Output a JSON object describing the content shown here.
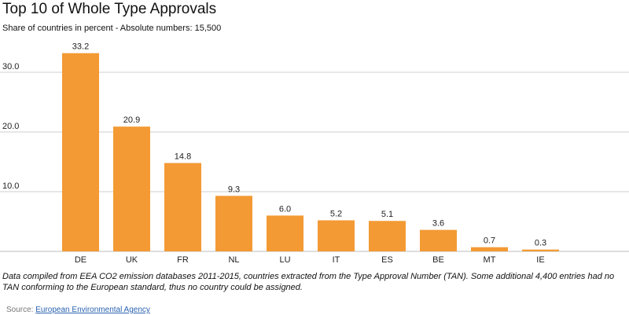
{
  "chart_data": {
    "type": "bar",
    "title": "Top 10 of Whole Type Approvals",
    "subtitle": "Share of countries in percent - Absolute numbers: 15,500",
    "categories": [
      "DE",
      "UK",
      "FR",
      "NL",
      "LU",
      "IT",
      "ES",
      "BE",
      "MT",
      "IE"
    ],
    "values": [
      33.2,
      20.9,
      14.8,
      9.3,
      6.0,
      5.2,
      5.1,
      3.6,
      0.7,
      0.3
    ],
    "value_labels": [
      "33.2",
      "20.9",
      "14.8",
      "9.3",
      "6.0",
      "5.2",
      "5.1",
      "3.6",
      "0.7",
      "0.3"
    ],
    "yticks": [
      10,
      20,
      30
    ],
    "ytick_labels": [
      "10.0",
      "20.0",
      "30.0"
    ],
    "ylim": [
      0,
      35
    ],
    "grid": "horizontal",
    "bar_color": "#f39a34"
  },
  "note": "Data compiled from EEA CO2 emission databases 2011-2015, countries extracted from the Type Approval Number (TAN). Some additional 4,400 entries had no TAN conforming to the European standard, thus no country could be assigned.",
  "source": {
    "label": "Source:",
    "link_text": "European Environmental Agency"
  }
}
